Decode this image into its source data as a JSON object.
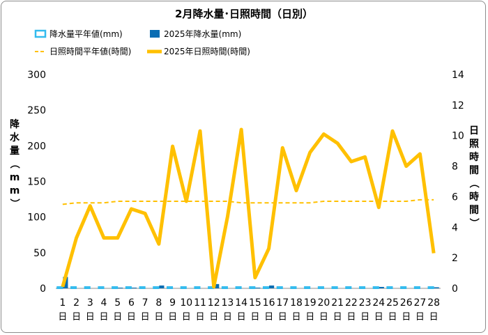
{
  "chart_data": {
    "type": "bar+line",
    "title": "2月降水量･日照時間（日別）",
    "categories": [
      "1",
      "2",
      "3",
      "4",
      "5",
      "6",
      "7",
      "8",
      "9",
      "10",
      "11",
      "12",
      "13",
      "14",
      "15",
      "16",
      "17",
      "18",
      "19",
      "20",
      "21",
      "22",
      "23",
      "24",
      "25",
      "26",
      "27",
      "28"
    ],
    "day_suffix": "日",
    "y_left": {
      "label": "降水量（mm）",
      "min": 0,
      "max": 300,
      "ticks": [
        "0",
        "50",
        "100",
        "150",
        "200",
        "250",
        "300"
      ]
    },
    "y_right": {
      "label": "日照時間（時間）",
      "min": 0,
      "max": 14,
      "ticks": [
        "0",
        "2",
        "4",
        "6",
        "8",
        "10",
        "12",
        "14"
      ]
    },
    "legend": {
      "precip_normal": "降水量平年値(mm)",
      "precip_2025": "2025年降水量(mm)",
      "sun_normal": "日照時間平年値(時間)",
      "sun_2025": "2025年日照時間(時間)"
    },
    "series": [
      {
        "name": "降水量平年値(mm)",
        "axis": "left",
        "kind": "bar-outline",
        "color": "#33bbee",
        "values": [
          2,
          2,
          2,
          2,
          2,
          2,
          2,
          2,
          2,
          2,
          2,
          2,
          2,
          2,
          2,
          2,
          2,
          2,
          2,
          2,
          2,
          2,
          2,
          2,
          2,
          2,
          2,
          2
        ]
      },
      {
        "name": "2025年降水量(mm)",
        "axis": "left",
        "kind": "bar",
        "color": "#0a6db3",
        "values": [
          16,
          0,
          0,
          0,
          1,
          1,
          0,
          4,
          0,
          0,
          0,
          6,
          0,
          0,
          1,
          4,
          0,
          0,
          0,
          0,
          0,
          0,
          0,
          2,
          0,
          0,
          0,
          1.5
        ]
      },
      {
        "name": "日照時間平年値(時間)",
        "axis": "right",
        "kind": "dashed-line",
        "color": "#ffc000",
        "values": [
          5.5,
          5.6,
          5.6,
          5.6,
          5.7,
          5.7,
          5.7,
          5.7,
          5.7,
          5.7,
          5.7,
          5.7,
          5.7,
          5.6,
          5.6,
          5.6,
          5.6,
          5.6,
          5.6,
          5.7,
          5.7,
          5.7,
          5.7,
          5.7,
          5.7,
          5.7,
          5.8,
          5.8
        ]
      },
      {
        "name": "2025年日照時間(時間)",
        "axis": "right",
        "kind": "line",
        "color": "#ffc000",
        "values": [
          0.1,
          3.3,
          5.4,
          3.3,
          3.3,
          5.2,
          4.9,
          2.9,
          9.3,
          5.7,
          10.3,
          0.1,
          4.7,
          10.4,
          0.7,
          2.6,
          9.2,
          6.4,
          8.9,
          10.1,
          9.5,
          8.3,
          8.6,
          5.3,
          10.3,
          8.0,
          8.8,
          2.3
        ]
      }
    ]
  }
}
